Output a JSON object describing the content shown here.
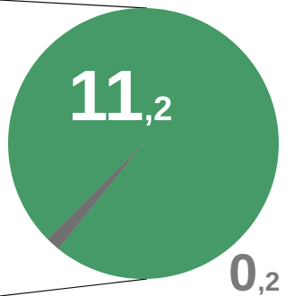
{
  "chart_data": {
    "type": "pie",
    "values": [
      11.2,
      0.2
    ],
    "labels": [
      {
        "main": "11",
        "sub": ",2"
      },
      {
        "main": "0",
        "sub": ",2"
      }
    ],
    "colors": [
      "#459a67",
      "#707070"
    ],
    "connector_color": "#111111"
  }
}
